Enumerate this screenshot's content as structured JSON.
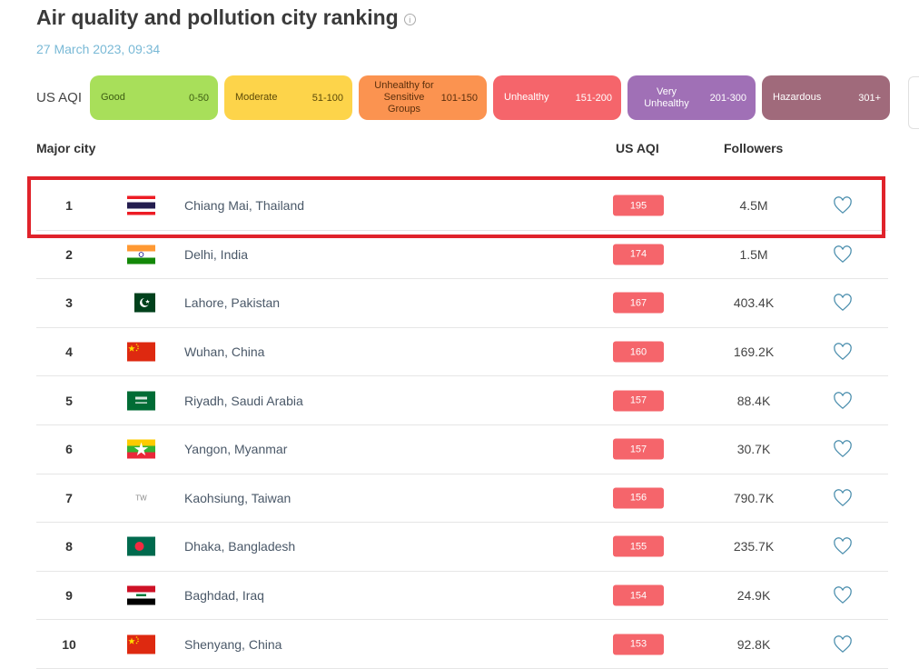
{
  "header": {
    "title": "Air quality and pollution city ranking",
    "timestamp": "27 March 2023, 09:34"
  },
  "legend": {
    "label": "US AQI",
    "items": [
      {
        "name": "Good",
        "range": "0-50"
      },
      {
        "name": "Moderate",
        "range": "51-100"
      },
      {
        "name": "Unhealthy for Sensitive Groups",
        "range": "101-150"
      },
      {
        "name": "Unhealthy",
        "range": "151-200"
      },
      {
        "name": "Very Unhealthy",
        "range": "201-300"
      },
      {
        "name": "Hazardous",
        "range": "301+"
      }
    ]
  },
  "table": {
    "headers": {
      "city": "Major city",
      "aqi": "US AQI",
      "followers": "Followers"
    },
    "rows": [
      {
        "rank": "1",
        "city": "Chiang Mai, Thailand",
        "aqi": "195",
        "followers": "4.5M",
        "flag": "thailand-flag-icon"
      },
      {
        "rank": "2",
        "city": "Delhi, India",
        "aqi": "174",
        "followers": "1.5M",
        "flag": "india-flag-icon"
      },
      {
        "rank": "3",
        "city": "Lahore, Pakistan",
        "aqi": "167",
        "followers": "403.4K",
        "flag": "pakistan-flag-icon"
      },
      {
        "rank": "4",
        "city": "Wuhan, China",
        "aqi": "160",
        "followers": "169.2K",
        "flag": "china-flag-icon"
      },
      {
        "rank": "5",
        "city": "Riyadh, Saudi Arabia",
        "aqi": "157",
        "followers": "88.4K",
        "flag": "saudi-arabia-flag-icon"
      },
      {
        "rank": "6",
        "city": "Yangon, Myanmar",
        "aqi": "157",
        "followers": "30.7K",
        "flag": "myanmar-flag-icon"
      },
      {
        "rank": "7",
        "city": "Kaohsiung, Taiwan",
        "aqi": "156",
        "followers": "790.7K",
        "flag_text": "TW"
      },
      {
        "rank": "8",
        "city": "Dhaka, Bangladesh",
        "aqi": "155",
        "followers": "235.7K",
        "flag": "bangladesh-flag-icon"
      },
      {
        "rank": "9",
        "city": "Baghdad, Iraq",
        "aqi": "154",
        "followers": "24.9K",
        "flag": "iraq-flag-icon"
      },
      {
        "rank": "10",
        "city": "Shenyang, China",
        "aqi": "153",
        "followers": "92.8K",
        "flag": "china-flag-icon"
      }
    ]
  },
  "colors": {
    "good": "#a8df5a",
    "moderate": "#fdd44a",
    "usg": "#fb9350",
    "unhealthy": "#f5656b",
    "very_unhealthy": "#a070b6",
    "hazardous": "#a06a7b",
    "highlight": "#e0232b"
  }
}
